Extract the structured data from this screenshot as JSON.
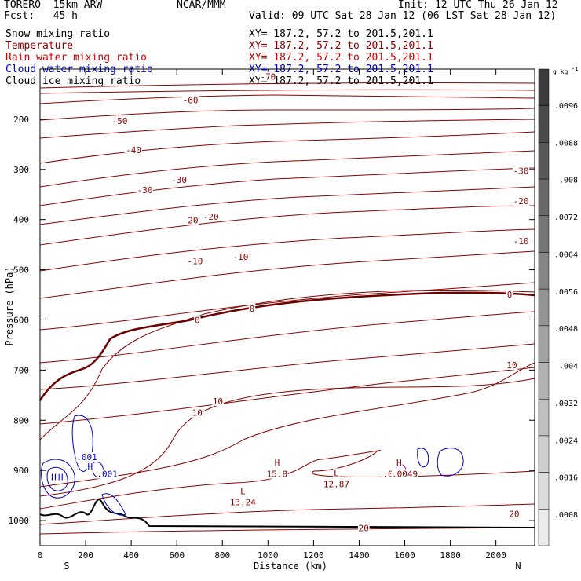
{
  "header": {
    "model": "TORERO  15km ARW",
    "org": "NCAR/MMM",
    "init": "Init: 12 UTC Thu 26 Jan 12",
    "fcst": "Fcst:   45 h",
    "valid": "Valid: 09 UTC Sat 28 Jan 12 (06 LST Sat 28 Jan 12)"
  },
  "fields": [
    {
      "label": "Snow mixing ratio",
      "xy": "XY= 187.2, 57.2 to 201.5,201.1",
      "color": "#000000"
    },
    {
      "label": "Temperature",
      "xy": "XY= 187.2, 57.2 to 201.5,201.1",
      "color": "#8b0000"
    },
    {
      "label": "Rain water mixing ratio",
      "xy": "XY= 187.2, 57.2 to 201.5,201.1",
      "color": "#cc0000"
    },
    {
      "label": "Cloud water mixing ratio",
      "xy": "XY= 187.2, 57.2 to 201.5,201.1",
      "color": "#0000cc"
    },
    {
      "label": "Cloud ice mixing ratio",
      "xy": "XY= 187.2, 57.2 to 201.5,201.1",
      "color": "#000000"
    }
  ],
  "chart_data": {
    "type": "contour cross-section",
    "xlabel": "Distance (km)",
    "ylabel": "Pressure (hPa)",
    "xlim": [
      0,
      2170
    ],
    "ylim": [
      1050,
      100
    ],
    "x_ticks": [
      0,
      200,
      400,
      600,
      800,
      1000,
      1200,
      1400,
      1600,
      1800,
      2000
    ],
    "y_ticks": [
      200,
      300,
      400,
      500,
      600,
      700,
      800,
      900,
      1000
    ],
    "x_end_labels": {
      "left": "S",
      "right": "N"
    },
    "colorbar": {
      "unit": "g kg",
      "unit_exp": "-1",
      "ticks": [
        ".0096",
        ".0088",
        ".008",
        ".0072",
        ".0064",
        ".0056",
        ".0048",
        ".004",
        ".0032",
        ".0024",
        ".0016",
        ".0008"
      ]
    },
    "temperature_labels": [
      {
        "text": "-70",
        "x": 1000,
        "p": 115
      },
      {
        "text": "-60",
        "x": 660,
        "p": 162
      },
      {
        "text": "-50",
        "x": 350,
        "p": 203
      },
      {
        "text": "-40",
        "x": 410,
        "p": 261
      },
      {
        "text": "-30",
        "x": 460,
        "p": 341
      },
      {
        "text": "-30",
        "x": 610,
        "p": 321
      },
      {
        "text": "-30",
        "x": 2110,
        "p": 303
      },
      {
        "text": "-20",
        "x": 660,
        "p": 401
      },
      {
        "text": "-20",
        "x": 750,
        "p": 394
      },
      {
        "text": "-20",
        "x": 2110,
        "p": 363
      },
      {
        "text": "-10",
        "x": 680,
        "p": 483
      },
      {
        "text": "-10",
        "x": 880,
        "p": 474
      },
      {
        "text": "-10",
        "x": 2110,
        "p": 443
      },
      {
        "text": "0",
        "x": 690,
        "p": 600
      },
      {
        "text": "0",
        "x": 930,
        "p": 577
      },
      {
        "text": "0",
        "x": 2060,
        "p": 549
      },
      {
        "text": "10",
        "x": 690,
        "p": 785
      },
      {
        "text": "10",
        "x": 780,
        "p": 762
      },
      {
        "text": "10",
        "x": 2070,
        "p": 690
      },
      {
        "text": "20",
        "x": 1420,
        "p": 1015
      },
      {
        "text": "20",
        "x": 2080,
        "p": 987
      }
    ],
    "extrema_labels": [
      {
        "text": "H",
        "x": 1040,
        "p": 884
      },
      {
        "text": "15.8",
        "x": 1040,
        "p": 907
      },
      {
        "text": "L",
        "x": 1300,
        "p": 905
      },
      {
        "text": "12.87",
        "x": 1300,
        "p": 927
      },
      {
        "text": "L",
        "x": 890,
        "p": 941
      },
      {
        "text": "13.24",
        "x": 890,
        "p": 963
      },
      {
        "text": "H",
        "x": 1570,
        "p": 884
      },
      {
        "text": "H",
        "x": 1575,
        "p": 884
      },
      {
        "text": ".0009",
        "x": 1560,
        "p": 907
      },
      {
        "text": ".0049",
        "x": 1600,
        "p": 907
      }
    ],
    "cloud_labels": [
      {
        "text": ".001",
        "x": 205,
        "p": 873
      },
      {
        "text": ".001",
        "x": 295,
        "p": 907
      },
      {
        "text": "H",
        "x": 60,
        "p": 913
      },
      {
        "text": "H",
        "x": 90,
        "p": 913
      },
      {
        "text": "H",
        "x": 220,
        "p": 892
      }
    ]
  }
}
